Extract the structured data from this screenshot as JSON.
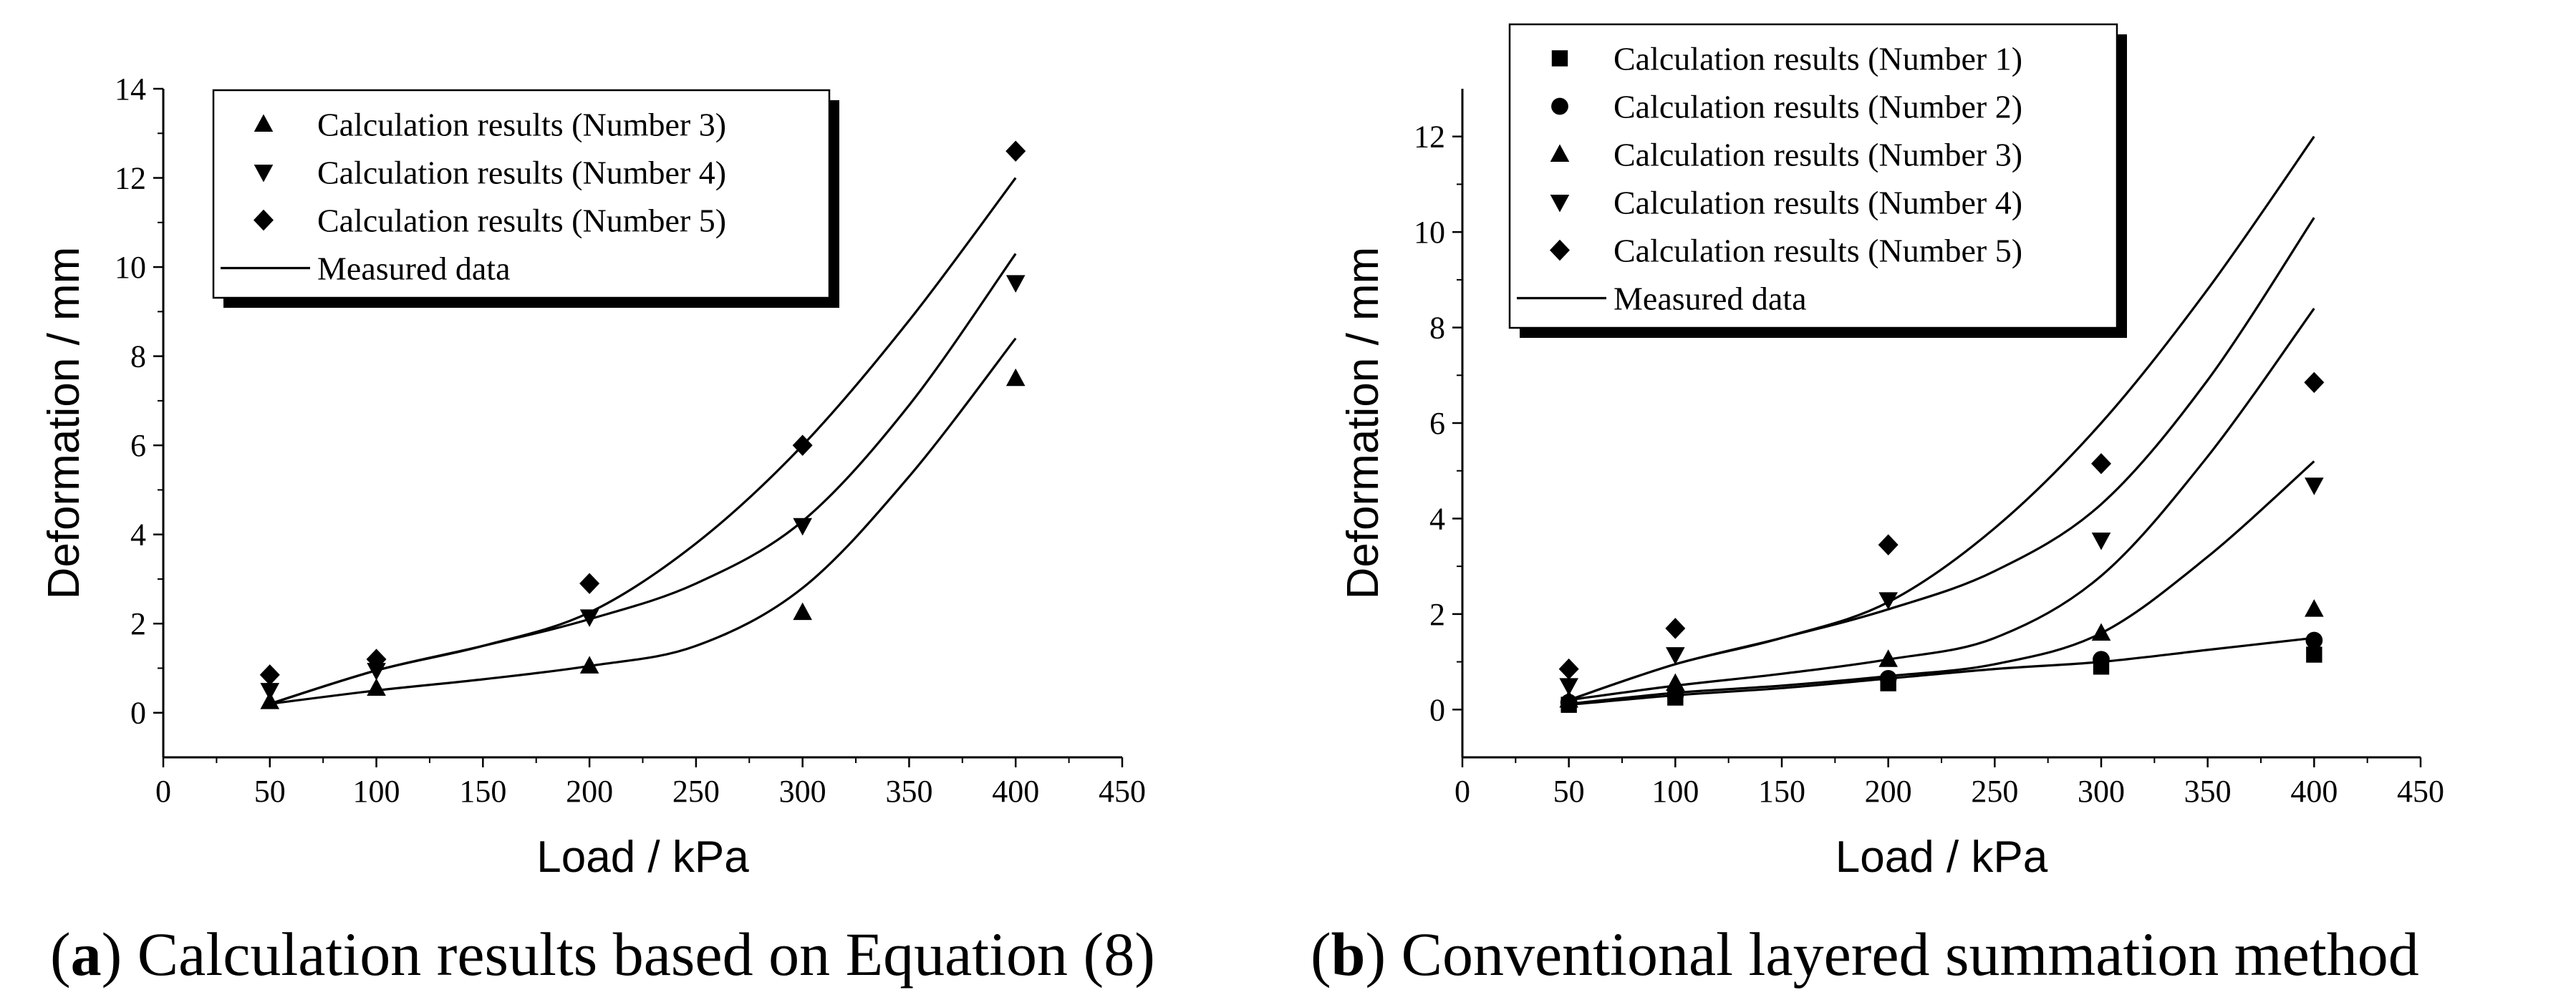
{
  "chart_data": [
    {
      "type": "scatter",
      "panel_label": "a",
      "caption": "Calculation results based on Equation (8)",
      "xlabel": "Load / kPa",
      "ylabel": "Deformation / mm",
      "xlim": [
        0,
        450
      ],
      "ylim": [
        -1,
        14
      ],
      "xticks": [
        0,
        50,
        100,
        150,
        200,
        250,
        300,
        350,
        400,
        450
      ],
      "yticks": [
        0,
        2,
        4,
        6,
        8,
        10,
        12,
        14
      ],
      "x": [
        50,
        100,
        200,
        300,
        400
      ],
      "series": [
        {
          "name": "Calculation results (Number 3)",
          "marker": "triangle-up",
          "values": [
            0.25,
            0.55,
            1.05,
            2.25,
            7.5
          ]
        },
        {
          "name": "Calculation results (Number 4)",
          "marker": "triangle-down",
          "values": [
            0.5,
            0.95,
            2.15,
            4.2,
            9.65
          ]
        },
        {
          "name": "Calculation results (Number 5)",
          "marker": "diamond",
          "values": [
            0.85,
            1.2,
            2.9,
            6.0,
            12.6
          ]
        }
      ],
      "measured_label": "Measured data",
      "measured": [
        {
          "x": [
            50,
            100,
            150,
            200,
            250,
            300,
            350,
            400
          ],
          "y": [
            0.2,
            0.5,
            0.75,
            1.05,
            1.5,
            2.8,
            5.3,
            8.4
          ]
        },
        {
          "x": [
            50,
            100,
            150,
            200,
            250,
            300,
            350,
            400
          ],
          "y": [
            0.2,
            0.95,
            1.5,
            2.1,
            2.9,
            4.3,
            6.9,
            10.3
          ]
        },
        {
          "x": [
            50,
            100,
            150,
            200,
            250,
            300,
            350,
            400
          ],
          "y": [
            0.2,
            0.95,
            1.5,
            2.25,
            3.8,
            6.0,
            8.8,
            12.0
          ]
        }
      ]
    },
    {
      "type": "scatter",
      "panel_label": "b",
      "caption": "Conventional layered summation method",
      "xlabel": "Load / kPa",
      "ylabel": "Deformation / mm",
      "xlim": [
        0,
        450
      ],
      "ylim": [
        -1,
        13
      ],
      "xticks": [
        0,
        50,
        100,
        150,
        200,
        250,
        300,
        350,
        400,
        450
      ],
      "yticks": [
        0,
        2,
        4,
        6,
        8,
        10,
        12
      ],
      "x": [
        50,
        100,
        200,
        300,
        400
      ],
      "series": [
        {
          "name": "Calculation results (Number 1)",
          "marker": "square",
          "values": [
            0.1,
            0.25,
            0.55,
            0.9,
            1.15
          ]
        },
        {
          "name": "Calculation results (Number 2)",
          "marker": "circle",
          "values": [
            0.15,
            0.3,
            0.65,
            1.05,
            1.45
          ]
        },
        {
          "name": "Calculation results (Number 3)",
          "marker": "triangle-up",
          "values": [
            0.2,
            0.55,
            1.05,
            1.6,
            2.1
          ]
        },
        {
          "name": "Calculation results (Number 4)",
          "marker": "triangle-down",
          "values": [
            0.5,
            1.15,
            2.3,
            3.55,
            4.7
          ]
        },
        {
          "name": "Calculation results (Number 5)",
          "marker": "diamond",
          "values": [
            0.85,
            1.7,
            3.45,
            5.15,
            6.85
          ]
        }
      ],
      "measured_label": "Measured data",
      "measured": [
        {
          "x": [
            50,
            100,
            150,
            200,
            250,
            300,
            350,
            400
          ],
          "y": [
            0.1,
            0.3,
            0.45,
            0.65,
            0.85,
            1.0,
            1.25,
            1.5
          ]
        },
        {
          "x": [
            50,
            100,
            150,
            200,
            250,
            300,
            350,
            400
          ],
          "y": [
            0.12,
            0.35,
            0.5,
            0.7,
            0.95,
            1.6,
            3.2,
            5.2
          ]
        },
        {
          "x": [
            50,
            100,
            150,
            200,
            250,
            300,
            350,
            400
          ],
          "y": [
            0.2,
            0.5,
            0.75,
            1.05,
            1.5,
            2.8,
            5.3,
            8.4
          ]
        },
        {
          "x": [
            50,
            100,
            150,
            200,
            250,
            300,
            350,
            400
          ],
          "y": [
            0.2,
            0.95,
            1.5,
            2.1,
            2.9,
            4.3,
            6.9,
            10.3
          ]
        },
        {
          "x": [
            50,
            100,
            150,
            200,
            250,
            300,
            350,
            400
          ],
          "y": [
            0.2,
            0.95,
            1.5,
            2.25,
            3.8,
            6.0,
            8.8,
            12.0
          ]
        }
      ]
    }
  ]
}
